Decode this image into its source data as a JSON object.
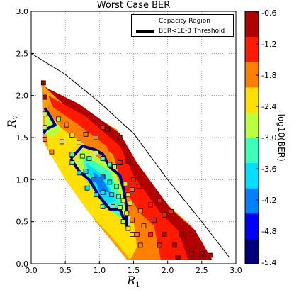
{
  "chart_data": {
    "type": "contour",
    "title": "Worst Case BER",
    "xlabel_main": "R",
    "xlabel_sub": "1",
    "ylabel_main": "R",
    "ylabel_sub": "2",
    "xlim": [
      0.0,
      3.0
    ],
    "ylim": [
      0.0,
      3.0
    ],
    "xticks": [
      "0.0",
      "0.5",
      "1.0",
      "1.5",
      "2.0",
      "2.5",
      "3.0"
    ],
    "yticks": [
      "0.0",
      "0.5",
      "1.0",
      "1.5",
      "2.0",
      "2.5",
      "3.0"
    ],
    "grid": true,
    "legend_position": "top-right",
    "legend": [
      {
        "label": "Capacity Region",
        "style": "thin black line"
      },
      {
        "label": "BER<1E-3 Threshold",
        "style": "thick black line"
      }
    ],
    "colorbar": {
      "label": "-log10(BER)",
      "ticks": [
        "-0.6",
        "-1.2",
        "-1.8",
        "-2.4",
        "-3.0",
        "-3.6",
        "-4.2",
        "-4.8",
        "-5.4"
      ],
      "range": [
        -5.4,
        -0.6
      ],
      "colors": [
        "#00007f",
        "#0000ff",
        "#0080ff",
        "#00e0ff",
        "#3dffb9",
        "#b9ff3d",
        "#ffe000",
        "#ff8000",
        "#ff1a00",
        "#b00000"
      ]
    },
    "capacity_region": [
      [
        0.0,
        2.5
      ],
      [
        0.5,
        2.25
      ],
      [
        1.0,
        1.92
      ],
      [
        1.5,
        1.55
      ],
      [
        2.0,
        1.0
      ],
      [
        2.5,
        0.5
      ],
      [
        2.9,
        0.08
      ]
    ],
    "region_outline": [
      [
        0.15,
        2.15
      ],
      [
        0.3,
        2.05
      ],
      [
        1.25,
        1.6
      ],
      [
        1.5,
        1.25
      ],
      [
        2.0,
        0.7
      ],
      [
        2.35,
        0.45
      ],
      [
        2.65,
        0.05
      ],
      [
        1.4,
        0.05
      ],
      [
        0.95,
        0.5
      ],
      [
        0.5,
        1.0
      ],
      [
        0.18,
        1.45
      ]
    ],
    "colored_bands": [
      {
        "level": -0.6,
        "color": "#b00000",
        "polygon": [
          [
            0.2,
            2.1
          ],
          [
            0.7,
            1.9
          ],
          [
            1.3,
            1.55
          ],
          [
            1.55,
            1.2
          ],
          [
            2.05,
            0.65
          ],
          [
            2.4,
            0.4
          ],
          [
            2.65,
            0.05
          ],
          [
            2.1,
            0.05
          ],
          [
            2.15,
            0.35
          ],
          [
            1.8,
            0.55
          ],
          [
            1.45,
            1.1
          ],
          [
            1.2,
            1.45
          ],
          [
            0.6,
            1.8
          ]
        ]
      },
      {
        "level": -1.2,
        "color": "#ff1a00",
        "polygon": [
          [
            0.25,
            2.0
          ],
          [
            0.8,
            1.75
          ],
          [
            1.3,
            1.4
          ],
          [
            1.5,
            1.05
          ],
          [
            1.9,
            0.6
          ],
          [
            2.15,
            0.4
          ],
          [
            2.3,
            0.05
          ],
          [
            1.8,
            0.05
          ],
          [
            1.75,
            0.4
          ],
          [
            1.4,
            0.75
          ],
          [
            1.2,
            1.3
          ],
          [
            0.7,
            1.6
          ],
          [
            0.35,
            1.8
          ]
        ]
      },
      {
        "level": -1.8,
        "color": "#ff8000",
        "polygon": [
          [
            0.25,
            1.9
          ],
          [
            0.7,
            1.65
          ],
          [
            1.1,
            1.4
          ],
          [
            1.35,
            0.9
          ],
          [
            1.6,
            0.6
          ],
          [
            1.8,
            0.45
          ],
          [
            1.9,
            0.05
          ],
          [
            1.45,
            0.05
          ],
          [
            1.35,
            0.3
          ],
          [
            0.95,
            0.55
          ],
          [
            0.6,
            0.95
          ],
          [
            0.3,
            1.35
          ],
          [
            0.2,
            1.6
          ]
        ]
      },
      {
        "level": -2.4,
        "color": "#ffe000",
        "polygon": [
          [
            0.2,
            1.75
          ],
          [
            0.55,
            1.55
          ],
          [
            0.9,
            1.35
          ],
          [
            1.3,
            0.8
          ],
          [
            1.5,
            0.5
          ],
          [
            1.55,
            0.2
          ],
          [
            1.45,
            0.05
          ],
          [
            1.2,
            0.3
          ],
          [
            0.85,
            0.6
          ],
          [
            0.5,
            1.0
          ],
          [
            0.25,
            1.35
          ]
        ]
      },
      {
        "level": -3.0,
        "color": "#b9ff3d",
        "polygon": [
          [
            0.2,
            1.85
          ],
          [
            0.45,
            1.6
          ],
          [
            0.3,
            1.5
          ],
          [
            0.2,
            1.55
          ]
        ]
      },
      {
        "level": -3.0,
        "color": "#b9ff3d",
        "polygon": [
          [
            0.7,
            1.4
          ],
          [
            1.2,
            1.15
          ],
          [
            1.4,
            0.75
          ],
          [
            1.45,
            0.45
          ],
          [
            1.2,
            0.6
          ],
          [
            0.85,
            0.95
          ],
          [
            0.65,
            1.2
          ]
        ]
      },
      {
        "level": -3.6,
        "color": "#3dffb9",
        "polygon": [
          [
            0.75,
            1.3
          ],
          [
            1.15,
            1.1
          ],
          [
            1.35,
            0.7
          ],
          [
            1.3,
            0.55
          ],
          [
            1.05,
            0.7
          ],
          [
            0.8,
            1.0
          ]
        ]
      },
      {
        "level": -4.2,
        "color": "#00e0ff",
        "polygon": [
          [
            0.8,
            1.2
          ],
          [
            1.05,
            1.05
          ],
          [
            1.25,
            0.75
          ],
          [
            1.1,
            0.7
          ],
          [
            0.9,
            0.95
          ]
        ]
      },
      {
        "level": -4.8,
        "color": "#0080ff",
        "polygon": [
          [
            0.9,
            1.1
          ],
          [
            1.05,
            1.0
          ],
          [
            1.15,
            0.85
          ],
          [
            1.0,
            0.85
          ]
        ]
      }
    ],
    "threshold_contours": [
      [
        [
          0.2,
          1.85
        ],
        [
          0.28,
          1.75
        ],
        [
          0.35,
          1.65
        ],
        [
          0.22,
          1.6
        ],
        [
          0.18,
          1.55
        ]
      ],
      [
        [
          0.58,
          1.25
        ],
        [
          0.75,
          1.4
        ],
        [
          0.95,
          1.35
        ],
        [
          1.05,
          1.3
        ],
        [
          1.15,
          1.15
        ],
        [
          1.3,
          1.05
        ],
        [
          1.35,
          0.9
        ],
        [
          1.4,
          0.65
        ],
        [
          1.4,
          0.45
        ],
        [
          1.3,
          0.65
        ],
        [
          1.15,
          0.65
        ],
        [
          1.0,
          0.8
        ],
        [
          0.85,
          1.0
        ],
        [
          0.7,
          1.1
        ],
        [
          0.58,
          1.25
        ]
      ]
    ],
    "markers": [
      {
        "x": 0.18,
        "y": 2.15,
        "level": -0.6
      },
      {
        "x": 0.2,
        "y": 1.98,
        "level": -0.9
      },
      {
        "x": 0.2,
        "y": 1.78,
        "level": -3.0
      },
      {
        "x": 0.2,
        "y": 1.62,
        "level": -2.6
      },
      {
        "x": 0.2,
        "y": 1.48,
        "level": -1.9
      },
      {
        "x": 0.4,
        "y": 1.72,
        "level": -3.0
      },
      {
        "x": 0.52,
        "y": 1.65,
        "level": -1.8
      },
      {
        "x": 0.6,
        "y": 1.53,
        "level": -2.1
      },
      {
        "x": 0.3,
        "y": 1.33,
        "level": -1.9
      },
      {
        "x": 0.45,
        "y": 1.45,
        "level": -2.3
      },
      {
        "x": 0.6,
        "y": 1.3,
        "level": -3.2
      },
      {
        "x": 0.7,
        "y": 1.44,
        "level": -2.4
      },
      {
        "x": 0.8,
        "y": 1.54,
        "level": -1.6
      },
      {
        "x": 0.95,
        "y": 1.5,
        "level": -1.8
      },
      {
        "x": 1.05,
        "y": 1.62,
        "level": -1.2
      },
      {
        "x": 1.12,
        "y": 1.6,
        "level": -0.8
      },
      {
        "x": 1.3,
        "y": 1.5,
        "level": -0.6
      },
      {
        "x": 0.6,
        "y": 1.2,
        "level": -3.3
      },
      {
        "x": 0.75,
        "y": 1.28,
        "level": -3.0
      },
      {
        "x": 0.85,
        "y": 1.25,
        "level": -3.4
      },
      {
        "x": 0.95,
        "y": 1.32,
        "level": -3.0
      },
      {
        "x": 1.05,
        "y": 1.25,
        "level": -3.1
      },
      {
        "x": 1.15,
        "y": 1.18,
        "level": -3.3
      },
      {
        "x": 1.22,
        "y": 1.15,
        "level": -2.8
      },
      {
        "x": 1.3,
        "y": 1.2,
        "level": -1.5
      },
      {
        "x": 1.42,
        "y": 1.22,
        "level": -0.7
      },
      {
        "x": 0.7,
        "y": 1.08,
        "level": -3.5
      },
      {
        "x": 0.8,
        "y": 1.1,
        "level": -3.9
      },
      {
        "x": 0.92,
        "y": 1.0,
        "level": -4.3
      },
      {
        "x": 1.05,
        "y": 1.03,
        "level": -4.0
      },
      {
        "x": 1.15,
        "y": 0.97,
        "level": -3.7
      },
      {
        "x": 1.25,
        "y": 0.92,
        "level": -3.4
      },
      {
        "x": 1.38,
        "y": 0.95,
        "level": -2.3
      },
      {
        "x": 1.5,
        "y": 1.0,
        "level": -1.3
      },
      {
        "x": 0.82,
        "y": 0.9,
        "level": -3.6
      },
      {
        "x": 0.95,
        "y": 0.82,
        "level": -3.9
      },
      {
        "x": 1.05,
        "y": 0.85,
        "level": -3.9
      },
      {
        "x": 1.18,
        "y": 0.82,
        "level": -3.6
      },
      {
        "x": 1.28,
        "y": 0.8,
        "level": -3.3
      },
      {
        "x": 1.35,
        "y": 0.75,
        "level": -2.5
      },
      {
        "x": 1.42,
        "y": 0.82,
        "level": -2.1
      },
      {
        "x": 1.48,
        "y": 0.88,
        "level": -1.6
      },
      {
        "x": 1.58,
        "y": 0.92,
        "level": -1.2
      },
      {
        "x": 1.05,
        "y": 0.68,
        "level": -3.4
      },
      {
        "x": 1.2,
        "y": 0.68,
        "level": -3.1
      },
      {
        "x": 1.3,
        "y": 0.67,
        "level": -3.0
      },
      {
        "x": 1.4,
        "y": 0.6,
        "level": -2.5
      },
      {
        "x": 1.45,
        "y": 0.72,
        "level": -2.2
      },
      {
        "x": 1.6,
        "y": 0.63,
        "level": -1.7
      },
      {
        "x": 1.75,
        "y": 0.7,
        "level": -1.3
      },
      {
        "x": 1.88,
        "y": 0.75,
        "level": -1.2
      },
      {
        "x": 1.35,
        "y": 0.5,
        "level": -2.6
      },
      {
        "x": 1.48,
        "y": 0.52,
        "level": -2.0
      },
      {
        "x": 1.65,
        "y": 0.45,
        "level": -1.8
      },
      {
        "x": 1.8,
        "y": 0.52,
        "level": -1.5
      },
      {
        "x": 1.95,
        "y": 0.58,
        "level": -1.4
      },
      {
        "x": 2.05,
        "y": 0.62,
        "level": -1.2
      },
      {
        "x": 1.42,
        "y": 0.42,
        "level": -2.3
      },
      {
        "x": 1.55,
        "y": 0.35,
        "level": -1.8
      },
      {
        "x": 1.75,
        "y": 0.35,
        "level": -1.4
      },
      {
        "x": 1.95,
        "y": 0.35,
        "level": -1.0
      },
      {
        "x": 1.48,
        "y": 0.35,
        "level": -2.5
      },
      {
        "x": 1.6,
        "y": 0.22,
        "level": -1.6
      },
      {
        "x": 1.88,
        "y": 0.22,
        "level": -1.1
      },
      {
        "x": 2.1,
        "y": 0.22,
        "level": -0.8
      },
      {
        "x": 2.2,
        "y": 0.35,
        "level": -0.7
      },
      {
        "x": 2.35,
        "y": 0.35,
        "level": -0.6
      },
      {
        "x": 2.15,
        "y": 0.08,
        "level": -0.7
      },
      {
        "x": 2.35,
        "y": 0.12,
        "level": -0.6
      },
      {
        "x": 2.5,
        "y": 0.12,
        "level": -0.6
      },
      {
        "x": 2.62,
        "y": 0.1,
        "level": -0.6
      }
    ]
  }
}
